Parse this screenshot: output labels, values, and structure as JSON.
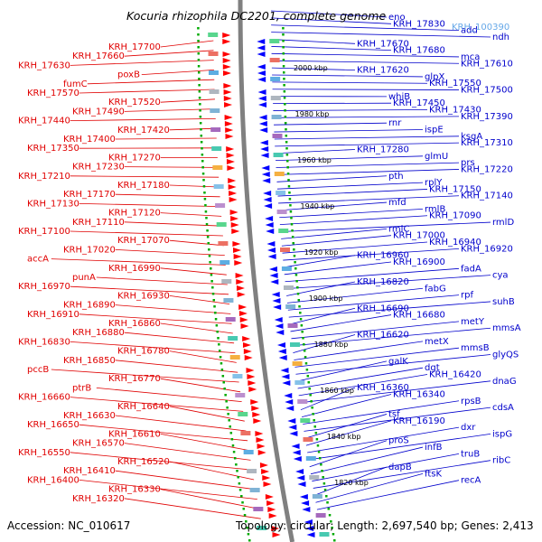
{
  "title": "Kocuria rhizophila DC2201, complete genome",
  "footer": {
    "accession": "Accession: NC_010617",
    "topology": "Topology: circular; Length: 2,697,540 bp; Genes: 2,413"
  },
  "highlight_label": "KRH_100390",
  "kbp_marks": [
    "2000 kbp",
    "1980 kbp",
    "1960 kbp",
    "1940 kbp",
    "1920 kbp",
    "1900 kbp",
    "1880 kbp",
    "1860 kbp",
    "1840 kbp",
    "1820 kbp"
  ],
  "left_labels": [
    "KRH_17700",
    "KRH_17660",
    "KRH_17630",
    "poxB",
    "fumC",
    "KRH_17570",
    "KRH_17520",
    "KRH_17490",
    "KRH_17440",
    "KRH_17420",
    "KRH_17400",
    "KRH_17350",
    "KRH_17270",
    "KRH_17230",
    "KRH_17210",
    "KRH_17180",
    "KRH_17170",
    "KRH_17130",
    "KRH_17120",
    "KRH_17110",
    "KRH_17100",
    "KRH_17070",
    "KRH_17020",
    "accA",
    "KRH_16990",
    "punA",
    "KRH_16970",
    "KRH_16930",
    "KRH_16890",
    "KRH_16910",
    "KRH_16860",
    "KRH_16880",
    "KRH_16830",
    "KRH_16780",
    "KRH_16850",
    "pccB",
    "KRH_16770",
    "ptrB",
    "KRH_16660",
    "KRH_16640",
    "KRH_16630",
    "KRH_16650",
    "KRH_16610",
    "KRH_16570",
    "KRH_16550",
    "KRH_16520",
    "KRH_16410",
    "KRH_16400",
    "KRH_16330",
    "KRH_16320"
  ],
  "right_labels": [
    "eno",
    "KRH_17830",
    "add",
    "ndh",
    "KRH_17670",
    "KRH_17680",
    "mca",
    "KRH_17610",
    "KRH_17620",
    "glpX",
    "KRH_17550",
    "KRH_17500",
    "whiB",
    "KRH_17450",
    "KRH_17430",
    "KRH_17390",
    "rnr",
    "ispE",
    "ksgA",
    "KRH_17310",
    "KRH_17280",
    "glmU",
    "prs",
    "KRH_17220",
    "pth",
    "rplY",
    "KRH_17150",
    "KRH_17140",
    "mfd",
    "rmlB",
    "KRH_17090",
    "rmlD",
    "rmlC",
    "KRH_17000",
    "KRH_16940",
    "KRH_16920",
    "KRH_16960",
    "KRH_16900",
    "fadA",
    "cya",
    "KRH_16820",
    "fabG",
    "rpf",
    "suhB",
    "KRH_16690",
    "KRH_16680",
    "metY",
    "mmsA",
    "KRH_16620",
    "metX",
    "mmsB",
    "glyQS",
    "galK",
    "dgt",
    "KRH_16420",
    "dnaG",
    "KRH_16360",
    "KRH_16340",
    "rpsB",
    "cdsA",
    "tsf",
    "KRH_16190",
    "dxr",
    "ispG",
    "proS",
    "infB",
    "truB",
    "ribC",
    "dapB",
    "ftsK",
    "recA"
  ],
  "colors": {
    "left_label": "#e00000",
    "right_label": "#0000cc",
    "forward_gene": "#ff0000",
    "reverse_gene": "#0000ff",
    "backbone": "#808080",
    "tick_dots": "#00aa00"
  }
}
